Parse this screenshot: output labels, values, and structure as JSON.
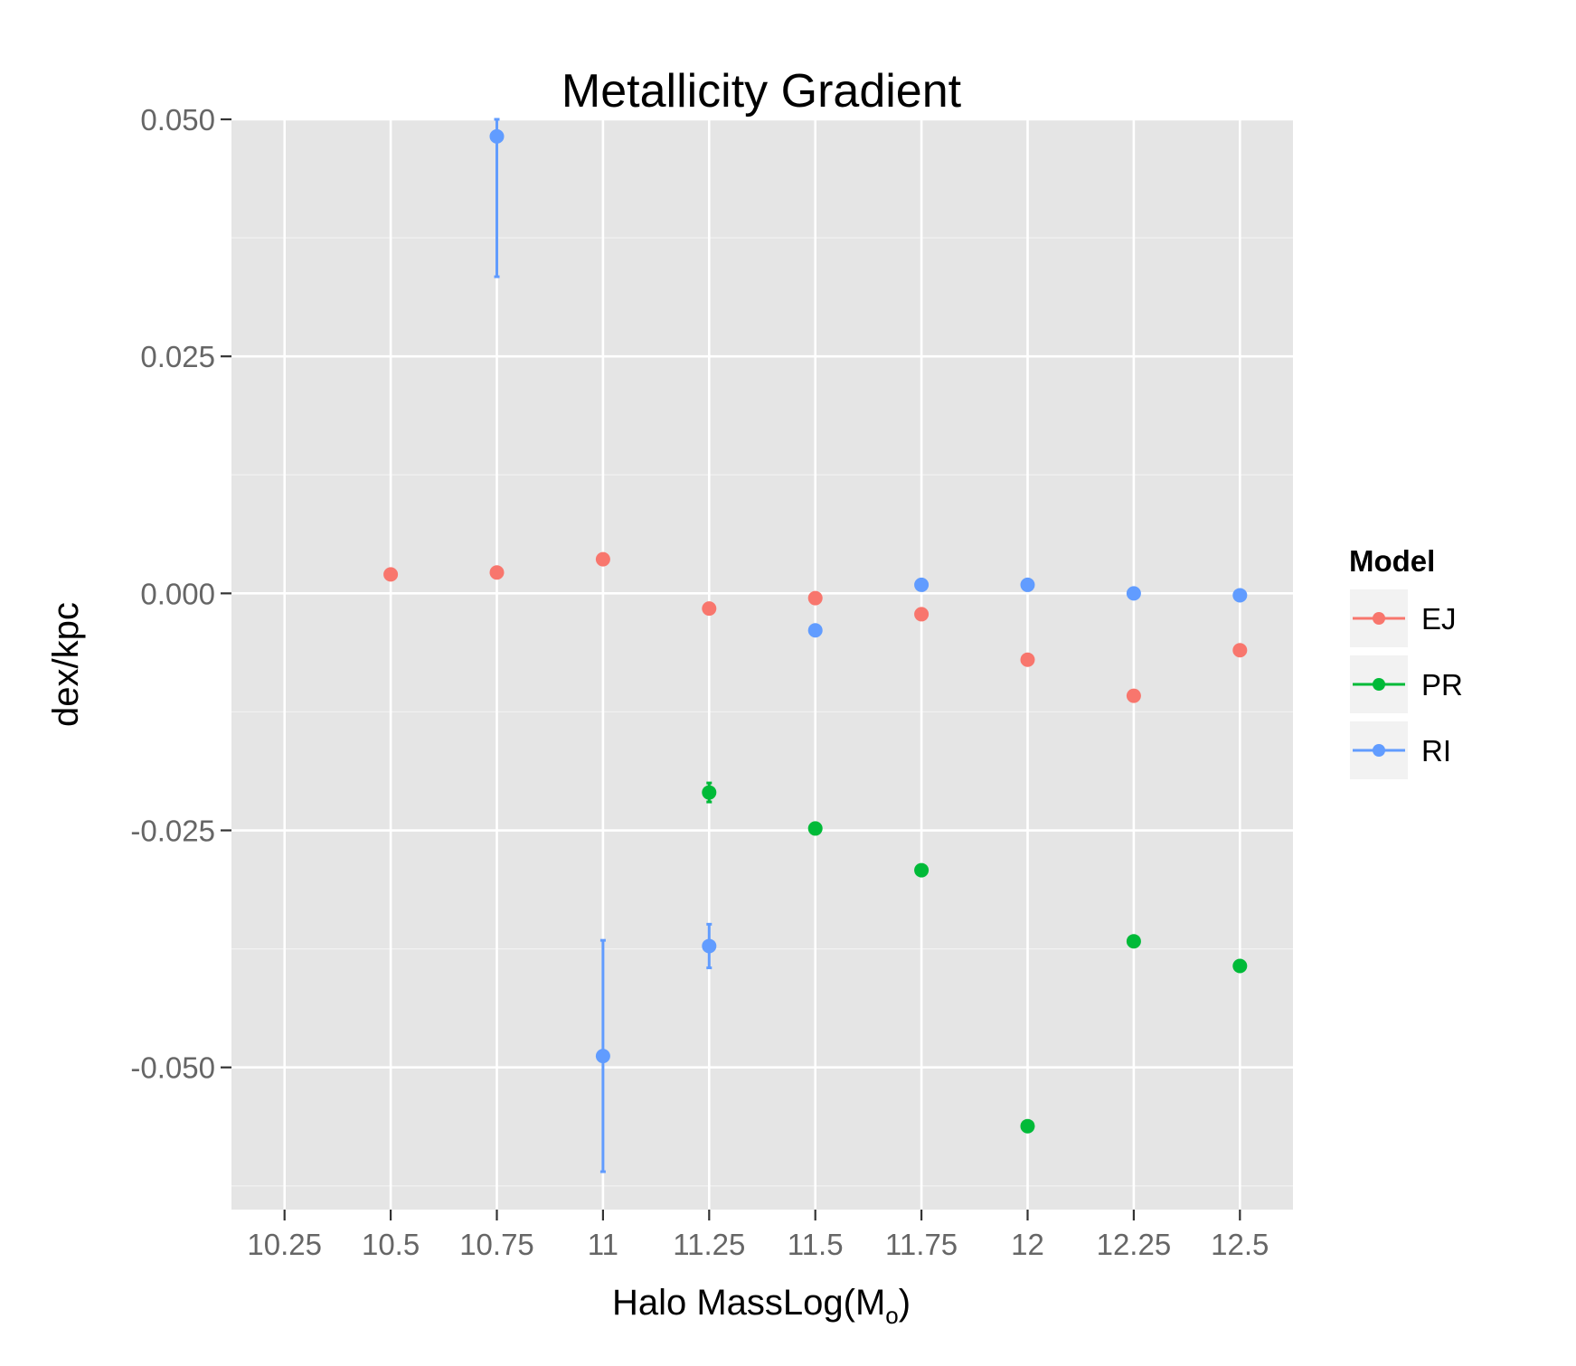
{
  "chart_data": {
    "type": "scatter",
    "title": "Metallicity Gradient",
    "xlabel_main": "Halo MassLog(M",
    "xlabel_sub": "o",
    "xlabel_close": ")",
    "ylabel": "dex/kpc",
    "xlim": [
      10.125,
      12.625
    ],
    "ylim": [
      -0.065,
      0.05
    ],
    "x_ticks": [
      10.25,
      10.5,
      10.75,
      11,
      11.25,
      11.5,
      11.75,
      12,
      12.25,
      12.5
    ],
    "x_tick_labels": [
      "10.25",
      "10.5",
      "10.75",
      "11",
      "11.25",
      "11.5",
      "11.75",
      "12",
      "12.25",
      "12.5"
    ],
    "y_ticks": [
      -0.05,
      -0.025,
      0.0,
      0.025,
      0.05
    ],
    "y_tick_labels": [
      "-0.050",
      "-0.025",
      "0.000",
      "0.025",
      "0.050"
    ],
    "y_minor_ticks": [
      -0.0625,
      -0.0375,
      -0.0125,
      0.0125,
      0.0375
    ],
    "grid": true,
    "legend_position": "right",
    "legend_title": "Model",
    "series": [
      {
        "name": "EJ",
        "color": "#F8766D",
        "points": [
          {
            "x": 10.5,
            "y": 0.002
          },
          {
            "x": 10.75,
            "y": 0.0022
          },
          {
            "x": 11.0,
            "y": 0.0036
          },
          {
            "x": 11.25,
            "y": -0.0016
          },
          {
            "x": 11.5,
            "y": -0.0005
          },
          {
            "x": 11.75,
            "y": -0.0022
          },
          {
            "x": 12.0,
            "y": -0.007
          },
          {
            "x": 12.25,
            "y": -0.0108
          },
          {
            "x": 12.5,
            "y": -0.006
          }
        ]
      },
      {
        "name": "PR",
        "color": "#00BA38",
        "points": [
          {
            "x": 11.25,
            "y": -0.021,
            "ymin": -0.022,
            "ymax": -0.02
          },
          {
            "x": 11.5,
            "y": -0.0248
          },
          {
            "x": 11.75,
            "y": -0.0292
          },
          {
            "x": 12.0,
            "y": -0.0562
          },
          {
            "x": 12.25,
            "y": -0.0367
          },
          {
            "x": 12.5,
            "y": -0.0393
          }
        ]
      },
      {
        "name": "RI",
        "color": "#619CFF",
        "points": [
          {
            "x": 10.75,
            "y": 0.0482,
            "ymin": 0.0334,
            "ymax": 0.05
          },
          {
            "x": 11.0,
            "y": -0.0488,
            "ymin": -0.061,
            "ymax": -0.0366
          },
          {
            "x": 11.25,
            "y": -0.0372,
            "ymin": -0.0395,
            "ymax": -0.0349
          },
          {
            "x": 11.5,
            "y": -0.0039
          },
          {
            "x": 11.75,
            "y": 0.0009
          },
          {
            "x": 12.0,
            "y": 0.0009
          },
          {
            "x": 12.25,
            "y": 0.0
          },
          {
            "x": 12.5,
            "y": -0.0002
          }
        ]
      }
    ]
  }
}
